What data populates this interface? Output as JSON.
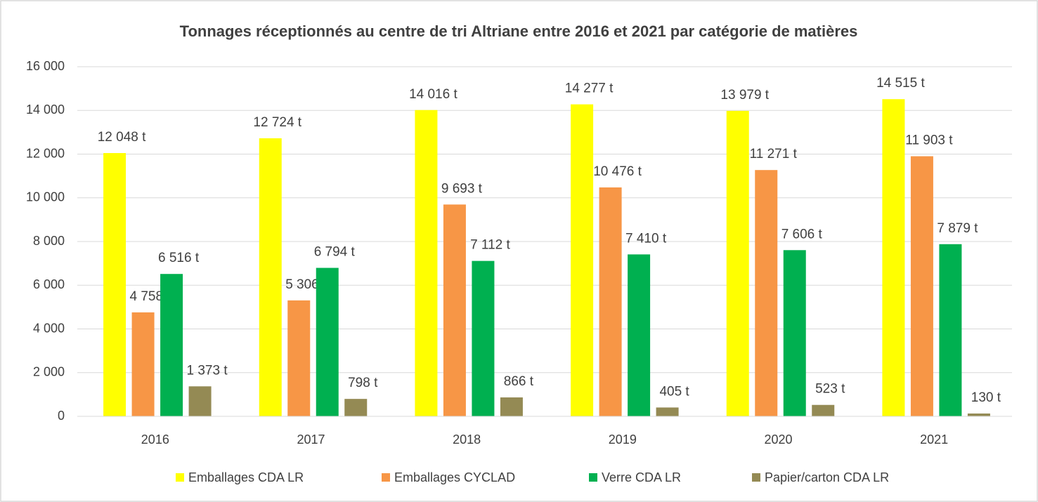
{
  "chart_data": {
    "type": "bar",
    "title": "Tonnages réceptionnés au centre de tri Altriane entre 2016 et 2021 par catégorie de matières",
    "categories": [
      "2016",
      "2017",
      "2018",
      "2019",
      "2020",
      "2021"
    ],
    "series": [
      {
        "name": "Emballages CDA LR",
        "color": "#ffff00",
        "values": [
          12048,
          12724,
          14016,
          14277,
          13979,
          14515
        ],
        "value_labels": [
          "12 048 t",
          "12 724 t",
          "14 016 t",
          "14 277 t",
          "13 979 t",
          "14 515 t"
        ]
      },
      {
        "name": "Emballages CYCLAD",
        "color": "#f79646",
        "values": [
          4758,
          5306,
          9693,
          10476,
          11271,
          11903
        ],
        "value_labels": [
          "4 758 t",
          "5 306 t",
          "9 693 t",
          "10 476 t",
          "11 271 t",
          "11 903 t"
        ]
      },
      {
        "name": "Verre CDA LR",
        "color": "#00b050",
        "values": [
          6516,
          6794,
          7112,
          7410,
          7606,
          7879
        ],
        "value_labels": [
          "6 516 t",
          "6 794 t",
          "7 112 t",
          "7 410 t",
          "7 606 t",
          "7 879 t"
        ]
      },
      {
        "name": "Papier/carton CDA LR",
        "color": "#948a54",
        "values": [
          1373,
          798,
          866,
          405,
          523,
          130
        ],
        "value_labels": [
          "1 373 t",
          "798 t",
          "866 t",
          "405 t",
          "523 t",
          "130 t"
        ]
      }
    ],
    "ylim": [
      0,
      16000
    ],
    "yticks": [
      0,
      {
        "value": 2000,
        "label": "2 000"
      },
      {
        "value": 4000,
        "label": "4 000"
      },
      {
        "value": 6000,
        "label": "6 000"
      },
      {
        "value": 8000,
        "label": "8 000"
      },
      {
        "value": 10000,
        "label": "10 000"
      },
      {
        "value": 12000,
        "label": "12 000"
      },
      {
        "value": 14000,
        "label": "14 000"
      },
      {
        "value": 16000,
        "label": "16 000"
      }
    ],
    "grid": true,
    "legend": "bottom"
  }
}
